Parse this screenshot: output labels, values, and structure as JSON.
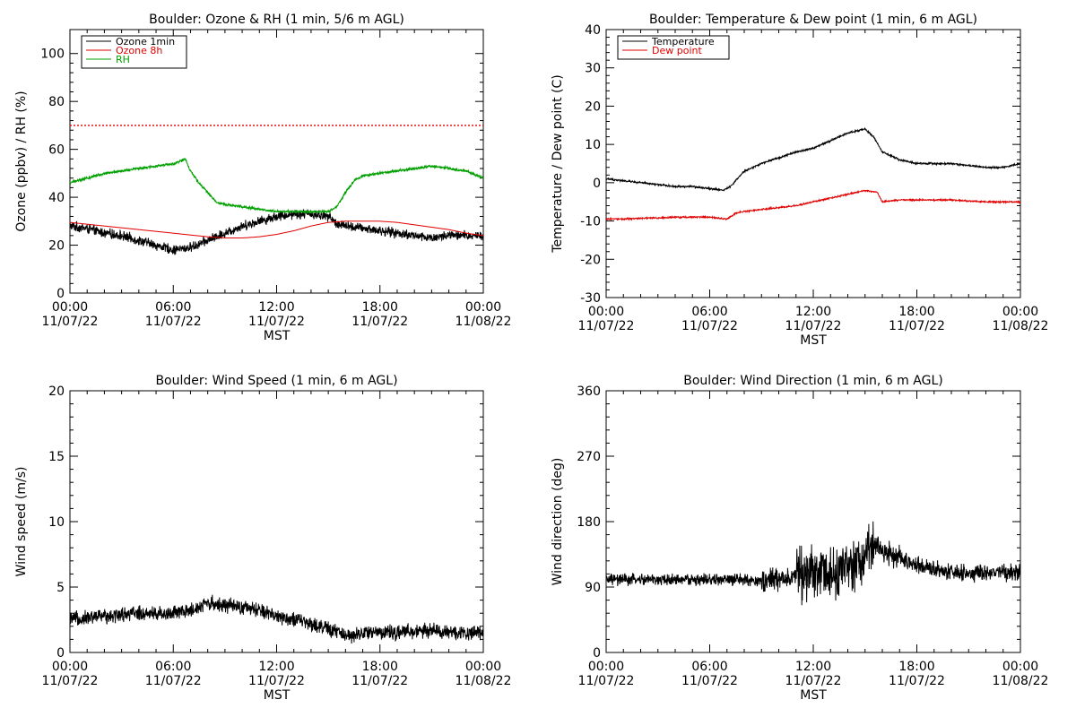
{
  "chart_data": [
    {
      "type": "line",
      "title": "Boulder: Ozone & RH (1 min, 5/6 m AGL)",
      "ylabel": "Ozone (ppbv) / RH (%)",
      "xlabel": "MST",
      "xlim": [
        0,
        24
      ],
      "ylim": [
        0,
        110
      ],
      "yticks": [
        0,
        20,
        40,
        60,
        80,
        100
      ],
      "xtick_labels": [
        [
          "00:00",
          "11/07/22"
        ],
        [
          "06:00",
          "11/07/22"
        ],
        [
          "12:00",
          "11/07/22"
        ],
        [
          "18:00",
          "11/07/22"
        ],
        [
          "00:00",
          "11/08/22"
        ]
      ],
      "legend": "top-left",
      "reference_line": {
        "y": 70,
        "color": "#e00000",
        "style": "dotted"
      },
      "series": [
        {
          "name": "Ozone 1min",
          "color": "#000000",
          "noise": 2.5,
          "x": [
            0,
            1,
            2,
            3,
            4,
            5,
            6,
            7,
            8,
            9,
            10,
            11,
            12,
            13,
            14,
            15,
            15.5,
            16,
            17,
            18,
            19,
            20,
            21,
            22,
            23,
            24
          ],
          "y": [
            28,
            27,
            25,
            24,
            22,
            20,
            18,
            19,
            22,
            25,
            28,
            30,
            32,
            33,
            33,
            32,
            29,
            28,
            27,
            26,
            25,
            24,
            23,
            24,
            24,
            24
          ]
        },
        {
          "name": "Ozone 8h",
          "color": "#e00000",
          "noise": 0,
          "x": [
            0,
            2,
            4,
            6,
            8,
            9,
            10,
            11,
            12,
            13,
            14,
            15,
            16,
            17,
            18,
            19,
            20,
            21,
            22,
            23,
            24
          ],
          "y": [
            29.5,
            28,
            26.5,
            25,
            23.5,
            23,
            23,
            23.5,
            24.5,
            26,
            28,
            29.5,
            30,
            30,
            30,
            29.5,
            28.5,
            27.5,
            26.5,
            25,
            24
          ]
        },
        {
          "name": "RH",
          "color": "#00a000",
          "noise": 0.7,
          "x": [
            0,
            1,
            2,
            3,
            4,
            5,
            6,
            6.7,
            7,
            7.5,
            8,
            8.5,
            9,
            10,
            11,
            12,
            13,
            14,
            15,
            15.5,
            16,
            16.5,
            17,
            18,
            19,
            20,
            21,
            22,
            23,
            24
          ],
          "y": [
            46,
            48,
            50,
            51,
            52,
            53,
            54,
            56,
            51,
            46,
            42,
            38,
            37,
            36,
            35,
            34,
            34,
            34,
            34,
            36,
            42,
            47,
            49,
            50,
            51,
            52,
            53,
            52,
            51,
            48
          ]
        }
      ]
    },
    {
      "type": "line",
      "title": "Boulder: Temperature & Dew point (1 min, 6 m AGL)",
      "ylabel": "Temperature / Dew point (C)",
      "xlabel": "MST",
      "xlim": [
        0,
        24
      ],
      "ylim": [
        -30,
        40
      ],
      "yticks": [
        -30,
        -20,
        -10,
        0,
        10,
        20,
        30,
        40
      ],
      "xtick_labels": [
        [
          "00:00",
          "11/07/22"
        ],
        [
          "06:00",
          "11/07/22"
        ],
        [
          "12:00",
          "11/07/22"
        ],
        [
          "18:00",
          "11/07/22"
        ],
        [
          "00:00",
          "11/08/22"
        ]
      ],
      "legend": "top-left",
      "series": [
        {
          "name": "Temperature",
          "color": "#000000",
          "noise": 0.3,
          "x": [
            0,
            1,
            2,
            3,
            4,
            5,
            6,
            6.8,
            7.2,
            8,
            9,
            10,
            11,
            12,
            13,
            14,
            15,
            15.5,
            16,
            17,
            18,
            19,
            20,
            21,
            22,
            23,
            24
          ],
          "y": [
            1,
            0.5,
            0,
            -0.5,
            -1,
            -1,
            -1.5,
            -2,
            -1,
            3,
            5,
            6.5,
            8,
            9,
            11,
            13,
            14,
            12,
            8,
            6,
            5,
            5,
            5,
            4.5,
            4,
            4,
            5
          ]
        },
        {
          "name": "Dew point",
          "color": "#e00000",
          "noise": 0.25,
          "x": [
            0,
            1,
            2,
            3,
            4,
            5,
            6,
            7,
            7.5,
            8,
            9,
            10,
            11,
            12,
            13,
            14,
            15,
            15.7,
            16,
            17,
            18,
            19,
            20,
            21,
            22,
            23,
            24
          ],
          "y": [
            -9.5,
            -9.5,
            -9.3,
            -9.2,
            -9,
            -9,
            -9,
            -9.5,
            -8,
            -7.5,
            -7,
            -6.5,
            -6,
            -5,
            -4,
            -3,
            -2,
            -2.5,
            -5,
            -4.5,
            -4.5,
            -4.5,
            -4.5,
            -4.8,
            -5,
            -5,
            -5
          ]
        }
      ]
    },
    {
      "type": "line",
      "title": "Boulder: Wind Speed (1 min, 6 m AGL)",
      "ylabel": "Wind speed (m/s)",
      "xlabel": "MST",
      "xlim": [
        0,
        24
      ],
      "ylim": [
        0,
        20
      ],
      "yticks": [
        0,
        5,
        10,
        15,
        20
      ],
      "xtick_labels": [
        [
          "00:00",
          "11/07/22"
        ],
        [
          "06:00",
          "11/07/22"
        ],
        [
          "12:00",
          "11/07/22"
        ],
        [
          "18:00",
          "11/07/22"
        ],
        [
          "00:00",
          "11/08/22"
        ]
      ],
      "series": [
        {
          "name": "",
          "color": "#000000",
          "noise": 0.7,
          "x": [
            0,
            2,
            4,
            6,
            7,
            8,
            9,
            10,
            11,
            12,
            13,
            14,
            15,
            16,
            17,
            18,
            19,
            20,
            21,
            22,
            23,
            24
          ],
          "y": [
            2.5,
            2.8,
            3,
            3,
            3.2,
            3.8,
            3.6,
            3.4,
            3.2,
            2.8,
            2.5,
            2.2,
            1.8,
            1.3,
            1.5,
            1.6,
            1.5,
            1.6,
            1.7,
            1.5,
            1.5,
            1.6
          ]
        }
      ]
    },
    {
      "type": "line",
      "title": "Boulder: Wind Direction (1 min, 6 m AGL)",
      "ylabel": "Wind direction (deg)",
      "xlabel": "MST",
      "xlim": [
        0,
        24
      ],
      "ylim": [
        0,
        360
      ],
      "yticks": [
        0,
        90,
        180,
        270,
        360
      ],
      "xtick_labels": [
        [
          "00:00",
          "11/07/22"
        ],
        [
          "06:00",
          "11/07/22"
        ],
        [
          "12:00",
          "11/07/22"
        ],
        [
          "18:00",
          "11/07/22"
        ],
        [
          "00:00",
          "11/08/22"
        ]
      ],
      "series": [
        {
          "name": "",
          "color": "#000000",
          "noise": 12,
          "noise_profile": [
            {
              "from": 0,
              "to": 9,
              "amp": 10
            },
            {
              "from": 9,
              "to": 11,
              "amp": 20
            },
            {
              "from": 11,
              "to": 15.5,
              "amp": 45
            },
            {
              "from": 15.5,
              "to": 17,
              "amp": 20
            },
            {
              "from": 17,
              "to": 24,
              "amp": 14
            }
          ],
          "x": [
            0,
            2,
            4,
            6,
            8,
            9,
            10,
            11,
            12,
            13,
            14,
            15,
            15.5,
            16,
            17,
            18,
            19,
            20,
            21,
            22,
            23,
            24
          ],
          "y": [
            100,
            100,
            100,
            100,
            100,
            98,
            100,
            105,
            110,
            110,
            115,
            130,
            150,
            140,
            130,
            120,
            115,
            110,
            108,
            110,
            110,
            110
          ]
        }
      ]
    }
  ]
}
